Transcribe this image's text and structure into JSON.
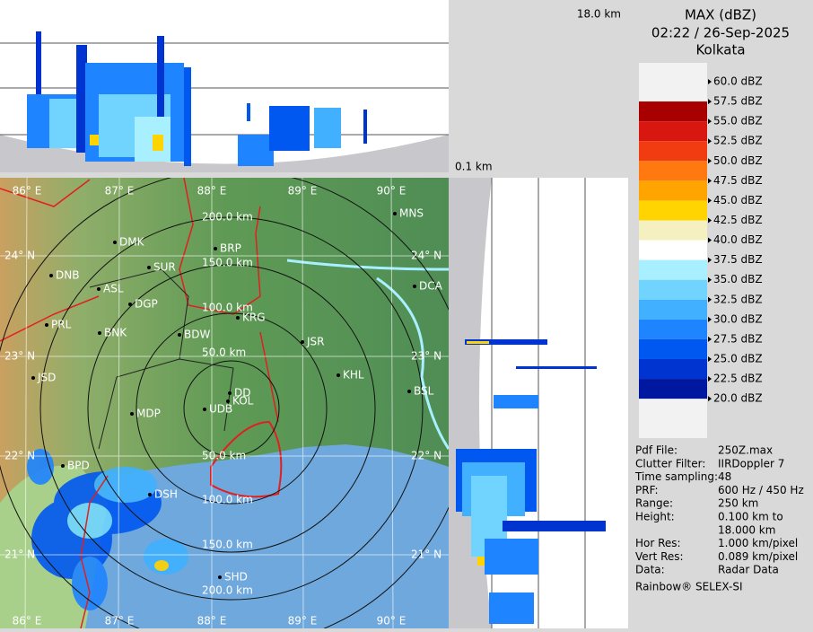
{
  "header": {
    "title": "MAX (dBZ)",
    "time": "02:22 / 26-Sep-2025",
    "station": "Kolkata"
  },
  "profile": {
    "top_label": "18.0 km",
    "bottom_label": "0.1 km"
  },
  "legend": {
    "labels": [
      "60.0 dBZ",
      "57.5 dBZ",
      "55.0 dBZ",
      "52.5 dBZ",
      "50.0 dBZ",
      "47.5 dBZ",
      "45.0 dBZ",
      "42.5 dBZ",
      "40.0 dBZ",
      "37.5 dBZ",
      "35.0 dBZ",
      "32.5 dBZ",
      "30.0 dBZ",
      "27.5 dBZ",
      "25.0 dBZ",
      "22.5 dBZ",
      "20.0 dBZ"
    ],
    "colors": [
      "#f2f2f2",
      "#a80000",
      "#d81810",
      "#f03c10",
      "#ff7810",
      "#ffa400",
      "#ffd400",
      "#f4f0c0",
      "#ffffff",
      "#a8f0ff",
      "#70d4ff",
      "#40b0ff",
      "#1e84ff",
      "#0058f0",
      "#0034d0",
      "#0018a0"
    ]
  },
  "info": {
    "rows": [
      [
        "Pdf File:",
        "250Z.max"
      ],
      [
        "Clutter Filter:",
        "IIRDoppler 7"
      ],
      [
        "Time sampling:48"
      ],
      [
        "PRF:",
        "600 Hz / 450 Hz"
      ],
      [
        "Range:",
        "250 km"
      ],
      [
        "Height:",
        "0.100 km to",
        "18.000 km"
      ],
      [
        "Hor Res:",
        "1.000 km/pixel"
      ],
      [
        "Vert Res:",
        "0.089 km/pixel"
      ],
      [
        "Data:",
        "Radar Data"
      ]
    ],
    "footer": "Rainbow® SELEX-SI"
  },
  "map": {
    "lon_labels": [
      "86° E",
      "87° E",
      "88° E",
      "89° E",
      "90° E"
    ],
    "lat_labels": [
      "24° N",
      "23° N",
      "22° N",
      "21° N"
    ],
    "range_labels_north": [
      "200.0 km",
      "150.0 km",
      "100.0 km",
      "50.0 km"
    ],
    "range_labels_south": [
      "50.0 km",
      "100.0 km",
      "150.0 km",
      "200.0 km"
    ],
    "cities": [
      "MNS",
      "DMK",
      "BRP",
      "SUR",
      "DNB",
      "ASL",
      "DGP",
      "DCA",
      "KRG",
      "PRL",
      "BNK",
      "BDW",
      "JSR",
      "KHL",
      "JSD",
      "DD",
      "KOL",
      "UDB",
      "BSL",
      "MDP",
      "BPD",
      "DSH",
      "SHD"
    ]
  }
}
